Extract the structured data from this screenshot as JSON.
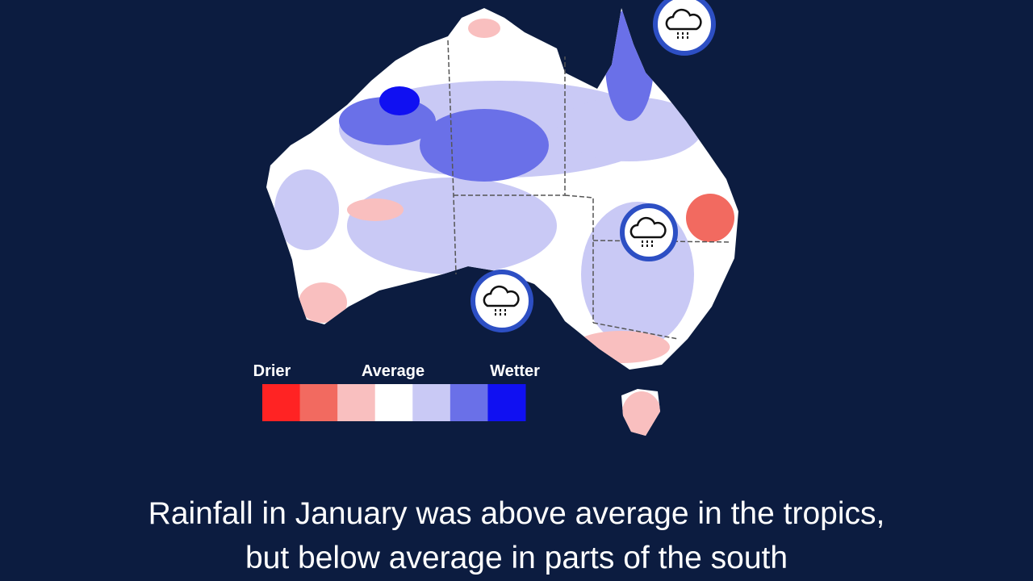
{
  "legend": {
    "labels": [
      "Drier",
      "Average",
      "Wetter"
    ],
    "colors": [
      "#ff2323",
      "#f26a60",
      "#f9bfbf",
      "#ffffff",
      "#c9c9f5",
      "#6a70e8",
      "#1010f2"
    ]
  },
  "caption": [
    "Rainfall in January was above average in the tropics,",
    "but below average in parts of the south"
  ]
}
